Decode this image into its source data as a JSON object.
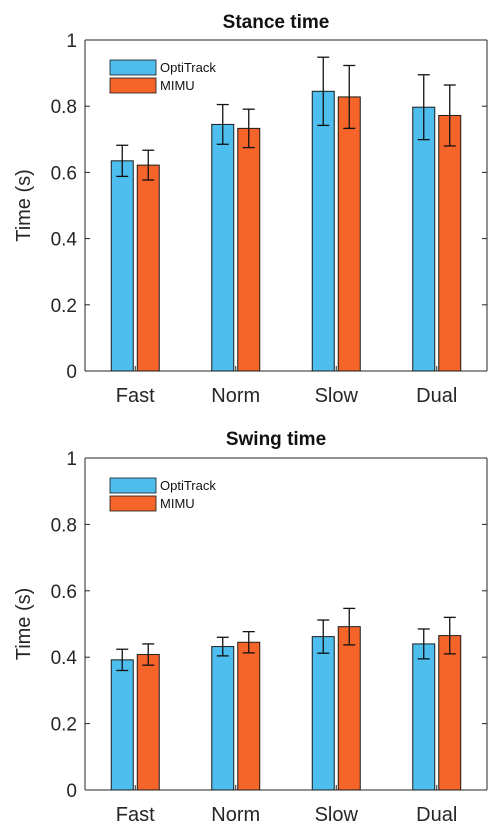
{
  "colors": {
    "optitrack": "#4DBEEE",
    "mimu": "#F5652A",
    "bar_edge": "#1a1a1a",
    "axis": "#262626",
    "text": "#262626"
  },
  "chart_data": [
    {
      "type": "bar",
      "title": "Stance time",
      "ylabel": "Time (s)",
      "xlabel": "",
      "ylim": [
        0,
        1
      ],
      "yticks": [
        0,
        0.2,
        0.4,
        0.6,
        0.8,
        1
      ],
      "ytick_labels": [
        "0",
        "0.2",
        "0.4",
        "0.6",
        "0.8",
        "1"
      ],
      "categories": [
        "Fast",
        "Norm",
        "Slow",
        "Dual"
      ],
      "legend_position": "top-left",
      "series": [
        {
          "name": "OptiTrack",
          "color": "#4DBEEE",
          "values": [
            0.635,
            0.745,
            0.845,
            0.797
          ],
          "errors": [
            0.047,
            0.06,
            0.103,
            0.098
          ]
        },
        {
          "name": "MIMU",
          "color": "#F5652A",
          "values": [
            0.622,
            0.733,
            0.828,
            0.772
          ],
          "errors": [
            0.045,
            0.058,
            0.095,
            0.092
          ]
        }
      ]
    },
    {
      "type": "bar",
      "title": "Swing time",
      "ylabel": "Time (s)",
      "xlabel": "",
      "ylim": [
        0,
        1
      ],
      "yticks": [
        0,
        0.2,
        0.4,
        0.6,
        0.8,
        1
      ],
      "ytick_labels": [
        "0",
        "0.2",
        "0.4",
        "0.6",
        "0.8",
        "1"
      ],
      "categories": [
        "Fast",
        "Norm",
        "Slow",
        "Dual"
      ],
      "legend_position": "top-left",
      "series": [
        {
          "name": "OptiTrack",
          "color": "#4DBEEE",
          "values": [
            0.392,
            0.432,
            0.462,
            0.44
          ],
          "errors": [
            0.032,
            0.028,
            0.05,
            0.045
          ]
        },
        {
          "name": "MIMU",
          "color": "#F5652A",
          "values": [
            0.408,
            0.445,
            0.492,
            0.465
          ],
          "errors": [
            0.032,
            0.032,
            0.055,
            0.055
          ]
        }
      ]
    }
  ]
}
